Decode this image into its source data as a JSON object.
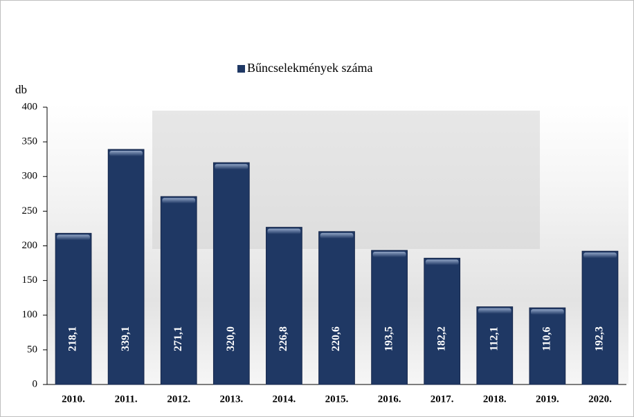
{
  "chart_data": {
    "type": "bar",
    "legend": "Bűncselekmények száma",
    "y_label": "db",
    "categories": [
      "2010.",
      "2011.",
      "2012.",
      "2013.",
      "2014.",
      "2015.",
      "2016.",
      "2017.",
      "2018.",
      "2019.",
      "2020."
    ],
    "values": [
      218.1,
      339.1,
      271.1,
      320.0,
      226.8,
      220.6,
      193.5,
      182.2,
      112.1,
      110.6,
      192.3
    ],
    "value_labels": [
      "218,1",
      "339,1",
      "271,1",
      "320,0",
      "226,8",
      "220,6",
      "193,5",
      "182,2",
      "112,1",
      "110,6",
      "192,3"
    ],
    "color": "#1f3864",
    "ylim": [
      0,
      400
    ],
    "yticks": [
      0,
      50,
      100,
      150,
      200,
      250,
      300,
      350,
      400
    ],
    "grid": false,
    "legend_position": "top"
  }
}
